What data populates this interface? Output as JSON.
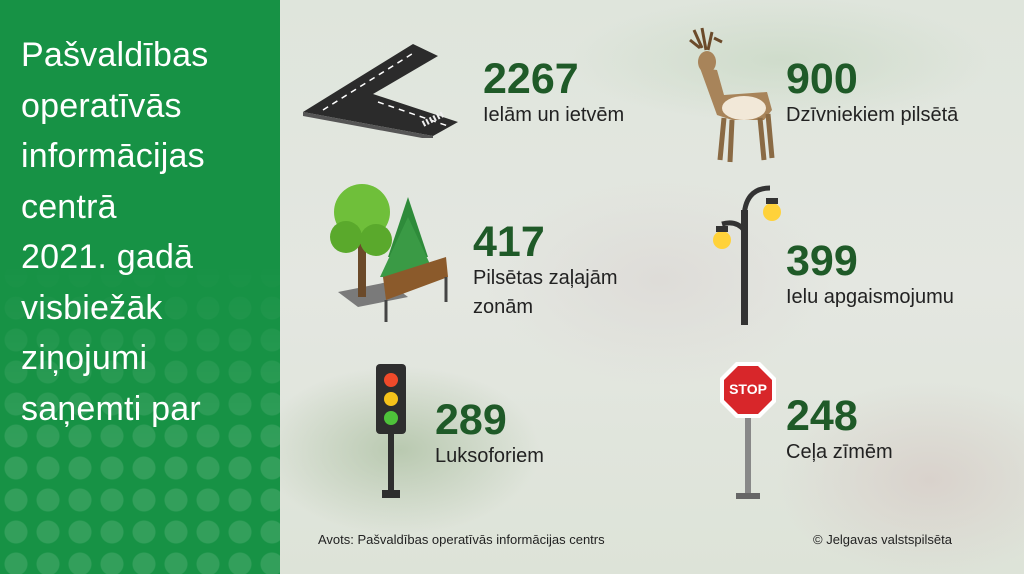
{
  "title_lines": [
    "Pašvaldības",
    "operatīvās",
    "informācijas",
    "centrā",
    "2021. gadā",
    "visbiežāk",
    "ziņojumi",
    "saņemti par"
  ],
  "stats": [
    {
      "value": "2267",
      "label_lines": [
        "Ielām un ietvēm"
      ],
      "icon": "road-icon"
    },
    {
      "value": "900",
      "label_lines": [
        "Dzīvniekiem pilsētā"
      ],
      "icon": "deer-icon"
    },
    {
      "value": "417",
      "label_lines": [
        "Pilsētas zaļajām",
        "zonām"
      ],
      "icon": "trees-bench-icon"
    },
    {
      "value": "399",
      "label_lines": [
        "Ielu apgaismojumu"
      ],
      "icon": "street-lamp-icon"
    },
    {
      "value": "289",
      "label_lines": [
        "Luksoforiem"
      ],
      "icon": "traffic-light-icon"
    },
    {
      "value": "248",
      "label_lines": [
        "Ceļa zīmēm"
      ],
      "icon": "stop-sign-icon"
    }
  ],
  "stop_sign_text": "STOP",
  "footer": {
    "source": "Avots: Pašvaldības operatīvās informācijas centrs",
    "copyright": "© Jelgavas valstspilsēta"
  },
  "colors": {
    "panel": "#179245",
    "number": "#1f5a28"
  }
}
